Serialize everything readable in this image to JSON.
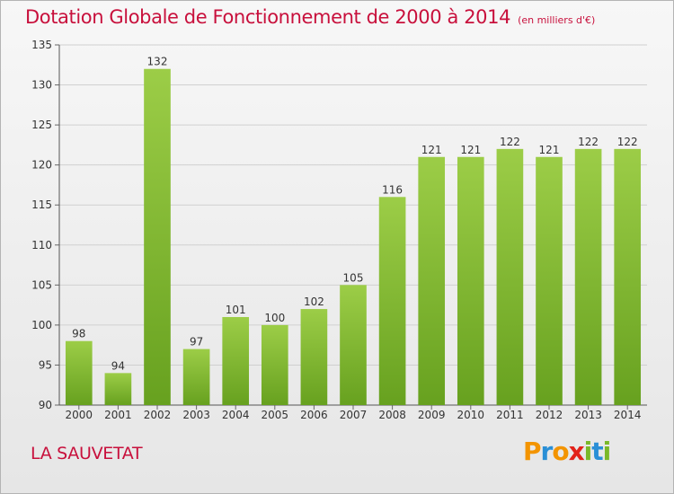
{
  "chart_data": {
    "type": "bar",
    "title": "Dotation Globale de Fonctionnement de 2000 à 2014",
    "subtitle": "(en milliers d'€)",
    "categories": [
      "2000",
      "2001",
      "2002",
      "2003",
      "2004",
      "2005",
      "2006",
      "2007",
      "2008",
      "2009",
      "2010",
      "2011",
      "2012",
      "2013",
      "2014"
    ],
    "values": [
      98,
      94,
      132,
      97,
      101,
      100,
      102,
      105,
      116,
      121,
      121,
      122,
      121,
      122,
      122
    ],
    "ylim": [
      90,
      135
    ],
    "yticks": [
      90,
      95,
      100,
      105,
      110,
      115,
      120,
      125,
      130,
      135
    ],
    "grid": true,
    "bar_color_light": "#9ccd47",
    "bar_color_dark": "#67a11f",
    "grid_color": "#d0d0d0"
  },
  "footer": {
    "commune": "LA SAUVETAT",
    "logo_text": "Proxiti",
    "logo_letters": [
      {
        "ch": "P",
        "color": "#f39400"
      },
      {
        "ch": "r",
        "color": "#2a8fd6"
      },
      {
        "ch": "o",
        "color": "#f39400"
      },
      {
        "ch": "x",
        "color": "#e2231a"
      },
      {
        "ch": "i",
        "color": "#7ab829"
      },
      {
        "ch": "t",
        "color": "#2a8fd6"
      },
      {
        "ch": "i",
        "color": "#7ab829"
      }
    ]
  }
}
